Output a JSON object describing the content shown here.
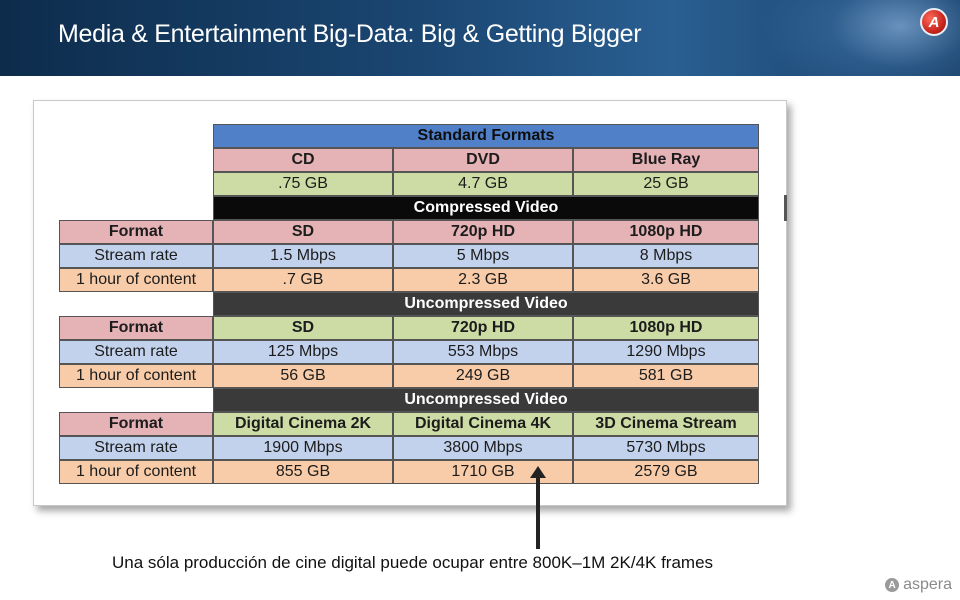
{
  "header": {
    "title": "Media & Entertainment Big-Data: Big & Getting Bigger"
  },
  "logo": {
    "icon": "aspera-logo-icon",
    "glyph": "A"
  },
  "table": {
    "standard": {
      "title": "Standard Formats",
      "columns": [
        "CD",
        "DVD",
        "Blue Ray"
      ],
      "sizes": [
        ".75 GB",
        "4.7 GB",
        "25 GB"
      ]
    },
    "compressed": {
      "title": "Compressed Video",
      "format_label": "Format",
      "formats": [
        "SD",
        "720p HD",
        "1080p HD"
      ],
      "stream_label": "Stream rate",
      "stream_rates": [
        "1.5 Mbps",
        "5 Mbps",
        "8 Mbps"
      ],
      "hour_label": "1 hour of content",
      "hour_sizes": [
        ".7 GB",
        "2.3 GB",
        "3.6 GB"
      ]
    },
    "uncompressed": {
      "title": "Uncompressed Video",
      "format_label": "Format",
      "formats": [
        "SD",
        "720p HD",
        "1080p HD"
      ],
      "stream_label": "Stream rate",
      "stream_rates": [
        "125 Mbps",
        "553 Mbps",
        "1290 Mbps"
      ],
      "hour_label": "1 hour of content",
      "hour_sizes": [
        "56 GB",
        "249 GB",
        "581 GB"
      ]
    },
    "cinema": {
      "title": "Uncompressed Video",
      "format_label": "Format",
      "formats": [
        "Digital Cinema 2K",
        "Digital Cinema 4K",
        "3D Cinema Stream"
      ],
      "stream_label": "Stream rate",
      "stream_rates": [
        "1900 Mbps",
        "3800 Mbps",
        "5730 Mbps"
      ],
      "hour_label": "1 hour of content",
      "hour_sizes": [
        "855 GB",
        "1710 GB",
        "2579 GB"
      ]
    }
  },
  "caption": "Una sóla producción de cine digital puede ocupar entre 800K–1M 2K/4K frames",
  "brand": {
    "icon": "aspera-mark-icon",
    "glyph": "A",
    "name": "aspera"
  }
}
